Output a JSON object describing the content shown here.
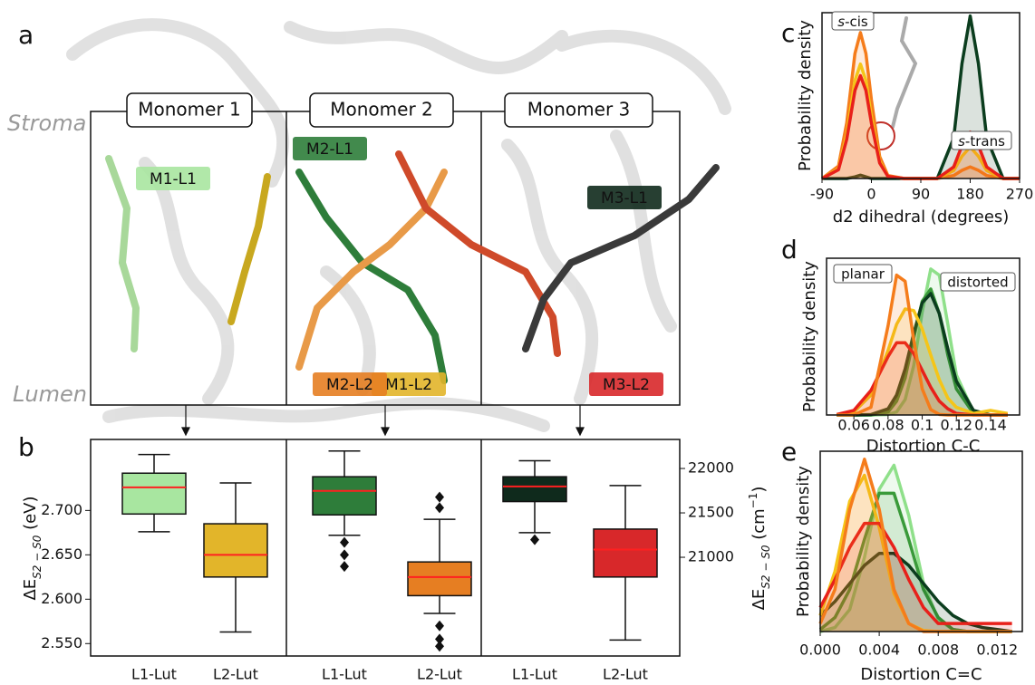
{
  "panel_labels": [
    "a",
    "b",
    "c",
    "d",
    "e"
  ],
  "structure": {
    "regions": [
      "Stroma",
      "Lumen"
    ],
    "monomers": [
      "Monomer 1",
      "Monomer 2",
      "Monomer 3"
    ],
    "ligands": [
      {
        "label": "M1-L1",
        "color": "#a8e6a0",
        "text_color": "#111"
      },
      {
        "label": "M1-L2",
        "color": "#e2b52a",
        "text_color": "#111"
      },
      {
        "label": "M2-L1",
        "color": "#2e7d3a",
        "text_color": "#111"
      },
      {
        "label": "M2-L2",
        "color": "#e67e22",
        "text_color": "#111"
      },
      {
        "label": "M3-L1",
        "color": "#0f2a1c",
        "text_color": "#fff"
      },
      {
        "label": "M3-L2",
        "color": "#d8282a",
        "text_color": "#111"
      }
    ]
  },
  "chart_data": [
    {
      "type": "box",
      "ylabel": {
        "main": "ΔE",
        "sub": "S2 − S0",
        "unit": " (eV)"
      },
      "y2label": {
        "main": "ΔE",
        "sub": "S2 − S0",
        "unit_open": " (cm",
        "sup": "−1",
        "unit_close": ")"
      },
      "ylim": [
        2.536,
        2.78
      ],
      "yticks": [
        {
          "value": 2.55,
          "label": "2.550"
        },
        {
          "value": 2.6,
          "label": "2.600"
        },
        {
          "value": 2.65,
          "label": "2.650"
        },
        {
          "value": 2.7,
          "label": "2.700"
        }
      ],
      "y2lim": [
        19888,
        22327
      ],
      "y2ticks": [
        21000,
        21500,
        22000
      ],
      "median_color": "#ff2020",
      "groups": [
        {
          "categories": [
            "L1-Lut",
            "L2-Lut"
          ],
          "boxes": [
            {
              "color": "#a8e6a0",
              "whisker_low": 2.676,
              "q1": 2.696,
              "median": 2.726,
              "q3": 2.742,
              "whisker_high": 2.763,
              "outliers": []
            },
            {
              "color": "#e2b52a",
              "whisker_low": 2.563,
              "q1": 2.625,
              "median": 2.65,
              "q3": 2.685,
              "whisker_high": 2.731,
              "outliers": []
            }
          ]
        },
        {
          "categories": [
            "L1-Lut",
            "L2-Lut"
          ],
          "boxes": [
            {
              "color": "#2e7d3a",
              "whisker_low": 2.672,
              "q1": 2.695,
              "median": 2.722,
              "q3": 2.738,
              "whisker_high": 2.767,
              "outliers": [
                2.664,
                2.65,
                2.637
              ]
            },
            {
              "color": "#e67e22",
              "whisker_low": 2.584,
              "q1": 2.604,
              "median": 2.625,
              "q3": 2.642,
              "whisker_high": 2.69,
              "outliers": [
                2.715,
                2.703,
                2.57,
                2.555,
                2.547
              ]
            }
          ]
        },
        {
          "categories": [
            "L1-Lut",
            "L2-Lut"
          ],
          "boxes": [
            {
              "color": "#0f2a1c",
              "whisker_low": 2.675,
              "q1": 2.71,
              "median": 2.727,
              "q3": 2.738,
              "whisker_high": 2.756,
              "outliers": [
                2.667
              ]
            },
            {
              "color": "#d8282a",
              "whisker_low": 2.554,
              "q1": 2.625,
              "median": 2.656,
              "q3": 2.679,
              "whisker_high": 2.728,
              "outliers": []
            }
          ]
        }
      ]
    },
    {
      "type": "density",
      "xlabel": "d2 dihedral (degrees)",
      "ylabel": "Probability density",
      "xlim": [
        -90,
        270
      ],
      "xticks": [
        -90,
        0,
        90,
        180,
        270
      ],
      "ylim": [
        0,
        1
      ],
      "x": [
        -90,
        -60,
        -45,
        -30,
        -20,
        -10,
        0,
        15,
        30,
        60,
        90,
        120,
        150,
        165,
        180,
        195,
        210,
        240,
        270
      ],
      "series": [
        {
          "color": "#0b3d1e",
          "values": [
            0,
            0,
            0,
            0.01,
            0.02,
            0.01,
            0,
            0,
            0,
            0,
            0,
            0,
            0.245,
            0.693,
            0.98,
            0.693,
            0.245,
            0,
            0
          ]
        },
        {
          "color": "#f57c1b",
          "values": [
            0,
            0.075,
            0.335,
            0.754,
            0.88,
            0.754,
            0.474,
            0.133,
            0.018,
            0,
            0,
            0,
            0.018,
            0.049,
            0.07,
            0.049,
            0.018,
            0,
            0
          ]
        },
        {
          "color": "#f5c518",
          "values": [
            0,
            0.059,
            0.263,
            0.591,
            0.69,
            0.591,
            0.372,
            0.104,
            0.014,
            0,
            0,
            0,
            0.048,
            0.134,
            0.19,
            0.134,
            0.048,
            0,
            0
          ]
        },
        {
          "color": "#e8201a",
          "values": [
            0,
            0.053,
            0.236,
            0.531,
            0.62,
            0.531,
            0.334,
            0.094,
            0.013,
            0,
            0,
            0,
            0.07,
            0.198,
            0.28,
            0.198,
            0.07,
            0,
            0
          ]
        }
      ],
      "annotations": [
        {
          "italic": "s",
          "rest": "-cis"
        },
        {
          "italic": "s",
          "rest": "-trans"
        }
      ]
    },
    {
      "type": "density",
      "xlabel": "Distortion C-C",
      "ylabel": "Probability density",
      "xlim": [
        0.044,
        0.157
      ],
      "xticks": [
        0.06,
        0.08,
        0.1,
        0.12,
        0.14
      ],
      "ylim": [
        0,
        1.02
      ],
      "x": [
        0.05,
        0.06,
        0.07,
        0.08,
        0.085,
        0.09,
        0.095,
        0.1,
        0.105,
        0.11,
        0.115,
        0.12,
        0.13,
        0.14,
        0.15
      ],
      "series": [
        {
          "color": "#8fe08a",
          "values": [
            0,
            0,
            0,
            0.003,
            0.02,
            0.1,
            0.32,
            0.67,
            0.95,
            0.91,
            0.59,
            0.26,
            0.02,
            0,
            0
          ]
        },
        {
          "color": "#3a9a3a",
          "values": [
            0,
            0,
            0,
            0.02,
            0.09,
            0.24,
            0.5,
            0.74,
            0.82,
            0.66,
            0.39,
            0.17,
            0.01,
            0,
            0
          ]
        },
        {
          "color": "#0b3d1e",
          "values": [
            0,
            0,
            0.003,
            0.04,
            0.13,
            0.3,
            0.53,
            0.73,
            0.79,
            0.66,
            0.43,
            0.22,
            0.03,
            0,
            0
          ]
        },
        {
          "color": "#f5c518",
          "values": [
            0.002,
            0.02,
            0.13,
            0.42,
            0.59,
            0.69,
            0.68,
            0.56,
            0.39,
            0.23,
            0.11,
            0.05,
            0.01,
            0.03,
            0.01
          ]
        },
        {
          "color": "#e8201a",
          "values": [
            0.003,
            0.03,
            0.16,
            0.38,
            0.47,
            0.47,
            0.4,
            0.29,
            0.18,
            0.09,
            0.04,
            0.01,
            0,
            0,
            0
          ]
        },
        {
          "color": "#f57c1b",
          "values": [
            0,
            0.001,
            0.05,
            0.58,
            0.91,
            0.87,
            0.49,
            0.17,
            0.035,
            0.004,
            0,
            0,
            0,
            0,
            0
          ]
        }
      ],
      "annotations": [
        {
          "text": "planar"
        },
        {
          "text": "distorted"
        }
      ]
    },
    {
      "type": "density",
      "xlabel": "Distortion C=C",
      "ylabel": "Probability density",
      "xlim": [
        0,
        0.0137
      ],
      "xticks": [
        {
          "value": 0,
          "label": "0.000"
        },
        {
          "value": 0.004,
          "label": "0.004"
        },
        {
          "value": 0.008,
          "label": "0.008"
        },
        {
          "value": 0.012,
          "label": "0.012"
        }
      ],
      "ylim": [
        0,
        0.9
      ],
      "x": [
        0,
        0.001,
        0.002,
        0.003,
        0.004,
        0.005,
        0.006,
        0.007,
        0.008,
        0.009,
        0.01,
        0.011,
        0.012,
        0.013
      ],
      "series": [
        {
          "color": "#8fe08a",
          "values": [
            0,
            0.02,
            0.11,
            0.37,
            0.71,
            0.83,
            0.58,
            0.24,
            0.06,
            0.01,
            0,
            0,
            0,
            0
          ]
        },
        {
          "color": "#3a9a3a",
          "values": [
            0.01,
            0.07,
            0.21,
            0.46,
            0.69,
            0.69,
            0.46,
            0.21,
            0.07,
            0.01,
            0,
            0,
            0,
            0
          ]
        },
        {
          "color": "#0b3d1e",
          "values": [
            0.08,
            0.15,
            0.24,
            0.33,
            0.39,
            0.39,
            0.33,
            0.24,
            0.15,
            0.08,
            0.04,
            0.02,
            0.01,
            0
          ]
        },
        {
          "color": "#f5c518",
          "values": [
            0.08,
            0.3,
            0.65,
            0.78,
            0.52,
            0.19,
            0.04,
            0.005,
            0,
            0,
            0,
            0,
            0,
            0
          ]
        },
        {
          "color": "#e8201a",
          "values": [
            0.12,
            0.26,
            0.42,
            0.54,
            0.54,
            0.42,
            0.26,
            0.12,
            0.04,
            0.04,
            0.04,
            0.04,
            0.04,
            0.04
          ]
        },
        {
          "color": "#f57c1b",
          "values": [
            0.04,
            0.21,
            0.61,
            0.86,
            0.61,
            0.21,
            0.04,
            0,
            0,
            0,
            0,
            0,
            0,
            0
          ]
        }
      ]
    }
  ]
}
